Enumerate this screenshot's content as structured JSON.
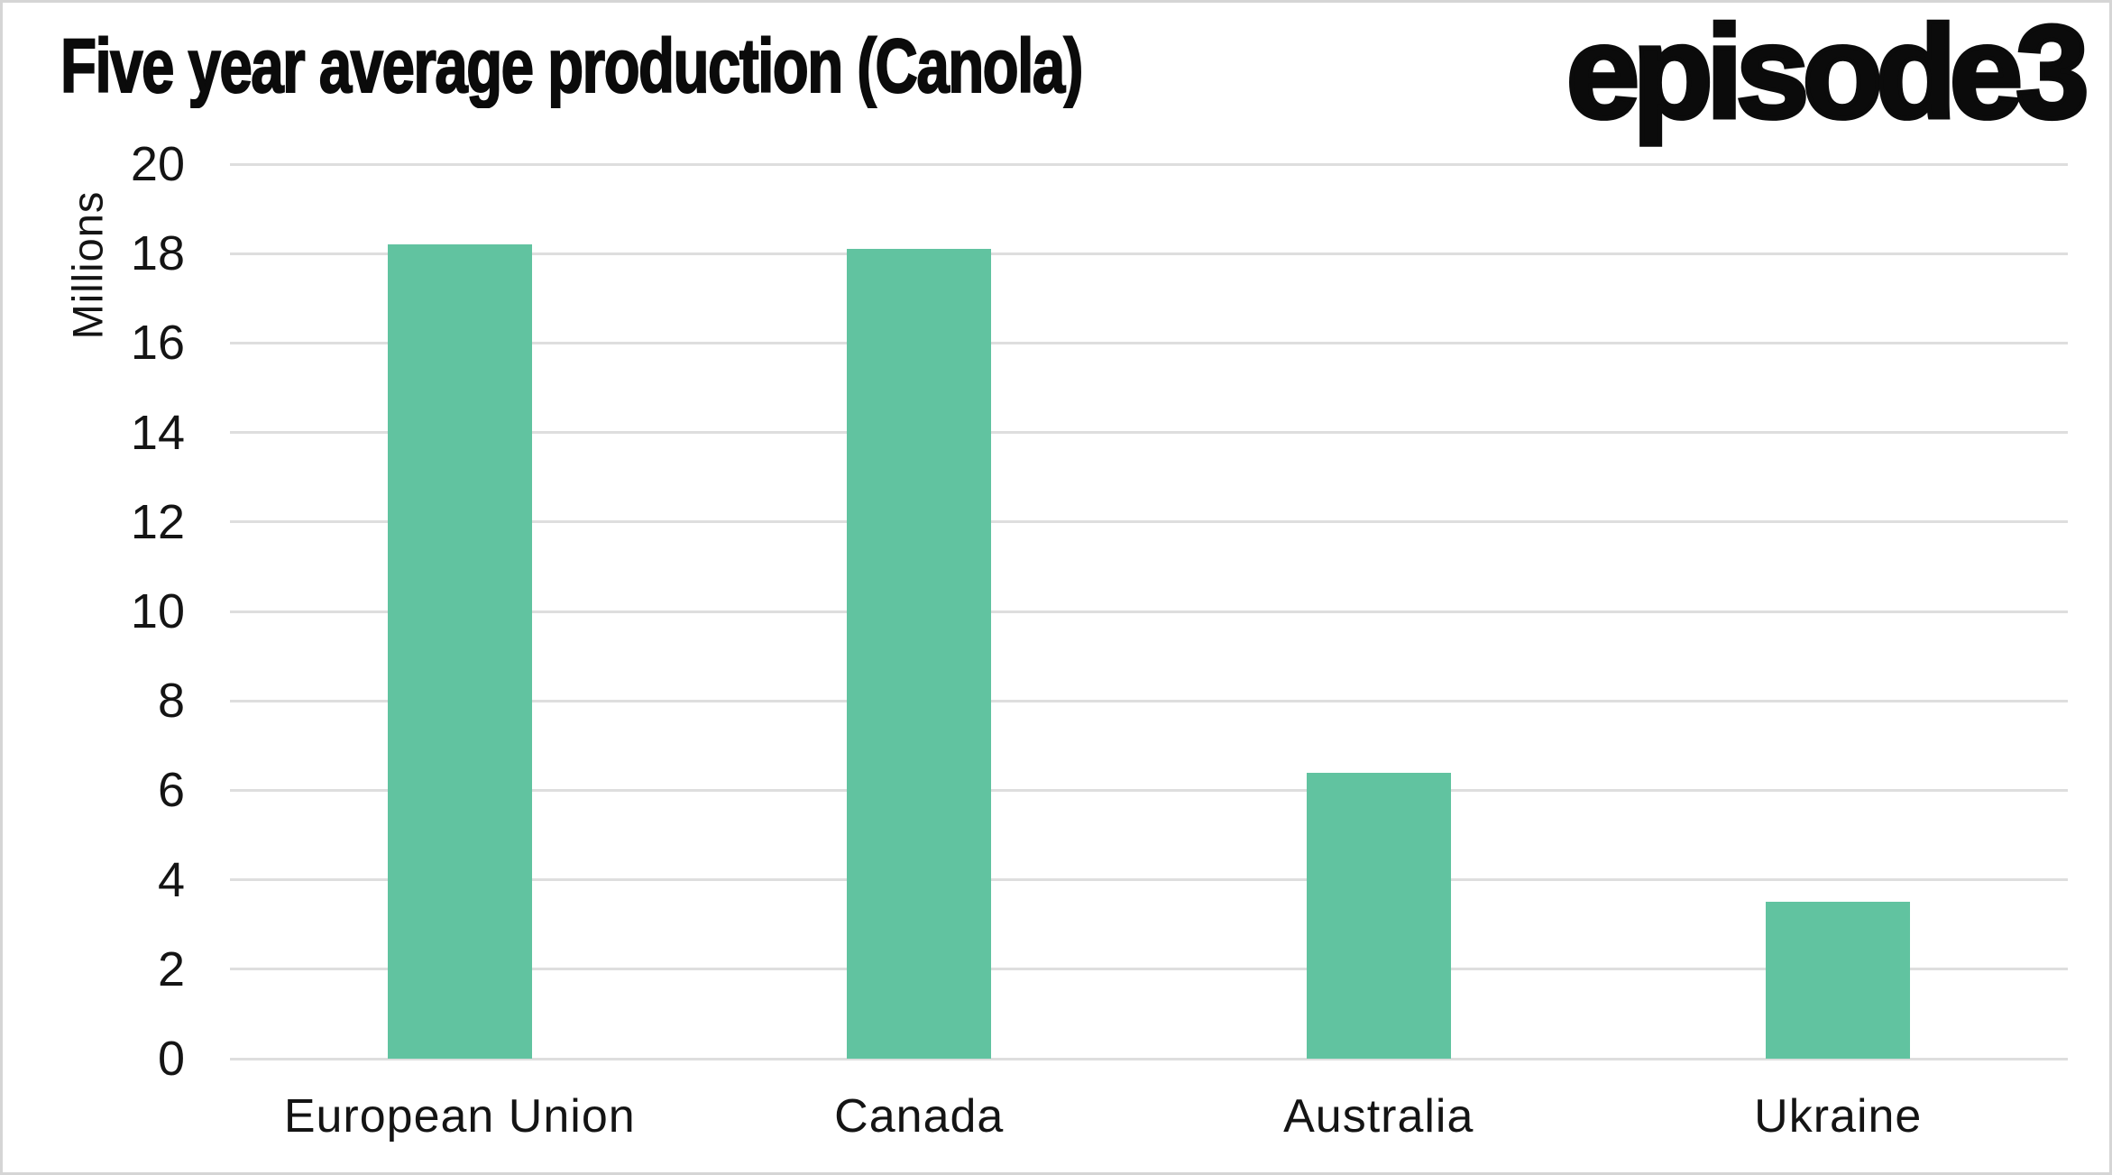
{
  "logo": "episode3",
  "chart_data": {
    "type": "bar",
    "title": "Five year average production (Canola)",
    "categories": [
      "European Union",
      "Canada",
      "Australia",
      "Ukraine"
    ],
    "values": [
      18.2,
      18.1,
      6.4,
      3.5
    ],
    "xlabel": "",
    "ylabel": "Millions",
    "ylim": [
      0,
      20
    ],
    "ytick_step": 2,
    "ytick_labels": [
      "0",
      "2",
      "4",
      "6",
      "8",
      "10",
      "12",
      "14",
      "16",
      "18",
      "20"
    ],
    "grid": true,
    "legend": false,
    "bar_color": "#61c3a0",
    "gridline_color": "#dedede",
    "text_color": "#141414",
    "background_color": "#ffffff",
    "border_color": "#d5d5d5"
  }
}
